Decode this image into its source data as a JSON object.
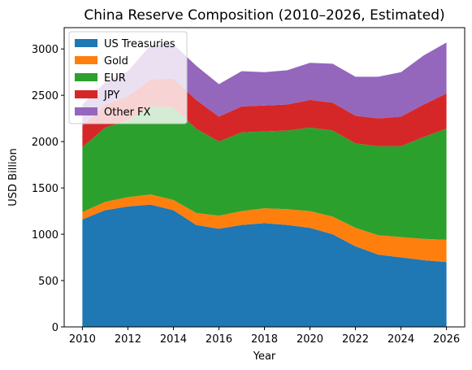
{
  "chart_data": {
    "type": "area",
    "stacked": true,
    "title": "China Reserve Composition (2010–2026, Estimated)",
    "xlabel": "Year",
    "ylabel": "USD Billion",
    "x": [
      2010,
      2011,
      2012,
      2013,
      2014,
      2015,
      2016,
      2017,
      2018,
      2019,
      2020,
      2021,
      2022,
      2023,
      2024,
      2025,
      2026
    ],
    "xticks": [
      2010,
      2012,
      2014,
      2016,
      2018,
      2020,
      2022,
      2024,
      2026
    ],
    "yticks": [
      0,
      500,
      1000,
      1500,
      2000,
      2500,
      3000
    ],
    "xlim": [
      2009.2,
      2026.8
    ],
    "ylim": [
      0,
      3230
    ],
    "legend_position": "top-left",
    "series": [
      {
        "name": "US Treasuries",
        "color": "#1f77b4",
        "values": [
          1160,
          1260,
          1300,
          1320,
          1260,
          1100,
          1060,
          1100,
          1120,
          1100,
          1070,
          1000,
          870,
          780,
          750,
          720,
          700
        ]
      },
      {
        "name": "Gold",
        "color": "#ff7f0e",
        "values": [
          80,
          90,
          100,
          110,
          110,
          130,
          140,
          150,
          160,
          170,
          180,
          190,
          200,
          210,
          220,
          230,
          240
        ]
      },
      {
        "name": "EUR",
        "color": "#2ca02c",
        "values": [
          700,
          800,
          830,
          950,
          1000,
          910,
          800,
          850,
          830,
          850,
          900,
          930,
          910,
          960,
          980,
          1100,
          1200
        ]
      },
      {
        "name": "JPY",
        "color": "#d62728",
        "values": [
          230,
          250,
          260,
          290,
          310,
          310,
          270,
          280,
          280,
          280,
          300,
          300,
          300,
          300,
          320,
          350,
          380
        ]
      },
      {
        "name": "Other FX",
        "color": "#9467bd",
        "values": [
          230,
          240,
          270,
          370,
          370,
          370,
          350,
          380,
          360,
          370,
          400,
          420,
          420,
          450,
          480,
          530,
          550
        ]
      }
    ]
  }
}
